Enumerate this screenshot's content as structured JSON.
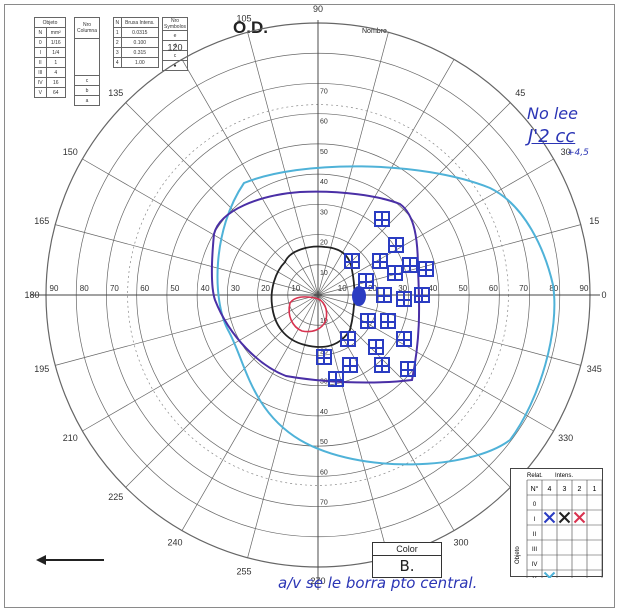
{
  "header": {
    "title": "O.D.",
    "name_label": "Nombre"
  },
  "tables": {
    "object": {
      "header": "Objeto",
      "rows": [
        [
          "N",
          "mm²"
        ],
        [
          "0",
          "1/16"
        ],
        [
          "I",
          "1/4"
        ],
        [
          "II",
          "1"
        ],
        [
          "III",
          "4"
        ],
        [
          "IV",
          "16"
        ],
        [
          "V",
          "64"
        ]
      ]
    },
    "filter": {
      "header": "Nro Columna",
      "rows": [
        "",
        "",
        "",
        "",
        "c",
        "b",
        "a"
      ]
    },
    "intensity": {
      "header_n": "N",
      "header_val": "Bruxa Intens.",
      "rows": [
        [
          "1",
          "0.0315"
        ],
        [
          "2",
          "0.100"
        ],
        [
          "3",
          "0.315"
        ],
        [
          "4",
          "1.00"
        ]
      ]
    },
    "symbol": {
      "header": "Nro Symbolos",
      "rows": [
        "e",
        "d",
        "c",
        "●"
      ]
    }
  },
  "polar": {
    "angle_labels": [
      "0",
      "15",
      "30",
      "45",
      "90",
      "105",
      "120",
      "135",
      "150",
      "165",
      "180",
      "195",
      "210",
      "225",
      "240",
      "255",
      "270",
      "285",
      "300",
      "315",
      "330",
      "345"
    ],
    "left_scale": [
      "90",
      "80",
      "70",
      "60",
      "50",
      "40",
      "30",
      "20",
      "10"
    ],
    "right_scale": [
      "10",
      "20",
      "30",
      "40",
      "50",
      "60",
      "70",
      "80",
      "90"
    ],
    "vertical_scale": [
      "70",
      "60",
      "50",
      "40",
      "30",
      "20",
      "10"
    ],
    "bottom_scale": [
      "10",
      "20",
      "30",
      "40",
      "50",
      "60",
      "70"
    ]
  },
  "notes": {
    "line1": "No lee",
    "line2": "J'2 cc",
    "line3": "+4,5",
    "bottom": "a/v se le borra pto central."
  },
  "color_box": {
    "label": "Color",
    "value": "B."
  },
  "relation_table": {
    "header_left": "Relat.",
    "header_right": "Intens.",
    "col_labels": [
      "N°",
      "4",
      "3",
      "2",
      "1"
    ],
    "row_labels": [
      "0",
      "I",
      "II",
      "III",
      "IV",
      "V"
    ],
    "side_label": "Objeto"
  },
  "colors": {
    "grid": "#555555",
    "isopter_blue": "#4a2fa6",
    "isopter_cyan": "#4fb2d8",
    "isopter_black": "#222222",
    "isopter_red": "#d8324f",
    "scotoma": "#2a3cc2"
  }
}
